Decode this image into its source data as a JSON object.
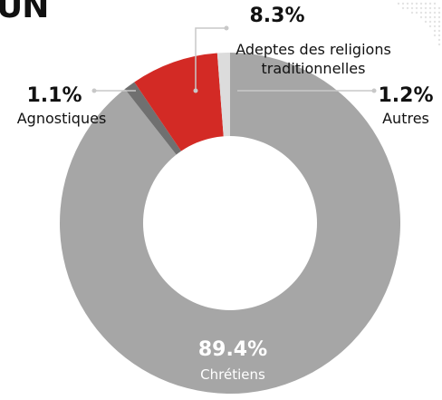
{
  "title": "UN",
  "chart_data": {
    "type": "pie",
    "donut": true,
    "start_angle_deg": 0,
    "colors": {
      "gray": "#a6a6a6",
      "red": "#d32a25",
      "light": "#dcdcdc",
      "dark": "#707070",
      "leader": "#c8c8c8"
    },
    "slices": [
      {
        "label": "Chrétiens",
        "value": 89.4,
        "display": "89.4%",
        "color": "#a6a6a6"
      },
      {
        "label": "Agnostiques",
        "value": 1.1,
        "display": "1.1%",
        "color": "#707070"
      },
      {
        "label": "Adeptes des religions traditionnelles",
        "value": 8.3,
        "display": "8.3%",
        "color": "#d32a25"
      },
      {
        "label": "Autres",
        "value": 1.2,
        "display": "1.2%",
        "color": "#dcdcdc"
      }
    ],
    "annotations": {
      "chretiens": {
        "pct": "89.4%",
        "label": "Chrétiens"
      },
      "agnostiques": {
        "pct": "1.1%",
        "label": "Agnostiques"
      },
      "traditionnelles": {
        "pct": "8.3%",
        "label_line1": "Adeptes des religions",
        "label_line2": "traditionnelles"
      },
      "autres": {
        "pct": "1.2%",
        "label": "Autres"
      }
    }
  }
}
